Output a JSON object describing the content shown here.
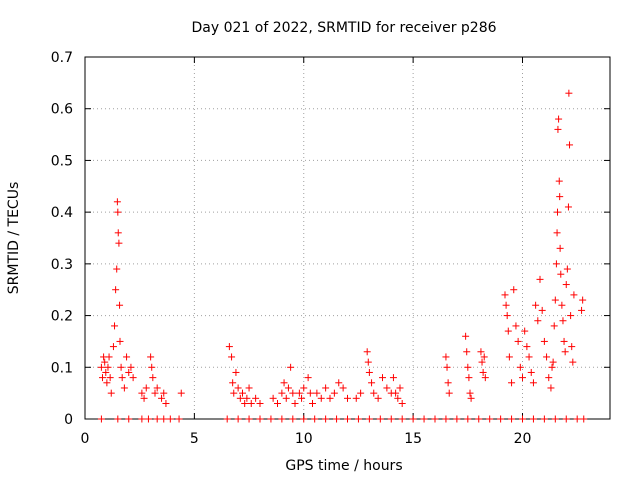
{
  "chart_data": {
    "type": "scatter",
    "title": "Day 021 of 2022, SRMTID for receiver p286",
    "xlabel": "GPS time / hours",
    "ylabel": "SRMTID / TECUs",
    "xlim": [
      0,
      24
    ],
    "ylim": [
      0,
      0.7
    ],
    "x_ticks": [
      0,
      5,
      10,
      15,
      20
    ],
    "y_ticks": [
      0,
      0.1,
      0.2,
      0.3,
      0.4,
      0.5,
      0.6,
      0.7
    ],
    "x_tick_labels": [
      "0",
      "5",
      "10",
      "15",
      "20"
    ],
    "y_tick_labels": [
      "0",
      "0.1",
      "0.2",
      "0.3",
      "0.4",
      "0.5",
      "0.6",
      "0.7"
    ],
    "grid": true,
    "marker": "+",
    "color": "#ff0000",
    "series": [
      {
        "name": "SRMTID",
        "points": [
          [
            0.75,
            0.1
          ],
          [
            0.8,
            0.08
          ],
          [
            0.85,
            0.12
          ],
          [
            0.9,
            0.11
          ],
          [
            0.95,
            0.09
          ],
          [
            1.0,
            0.07
          ],
          [
            1.05,
            0.1
          ],
          [
            1.1,
            0.12
          ],
          [
            1.15,
            0.08
          ],
          [
            1.2,
            0.05
          ],
          [
            1.3,
            0.14
          ],
          [
            1.35,
            0.18
          ],
          [
            1.4,
            0.25
          ],
          [
            1.45,
            0.29
          ],
          [
            1.48,
            0.42
          ],
          [
            1.5,
            0.4
          ],
          [
            1.52,
            0.36
          ],
          [
            1.55,
            0.34
          ],
          [
            1.58,
            0.22
          ],
          [
            1.6,
            0.15
          ],
          [
            1.65,
            0.1
          ],
          [
            1.7,
            0.08
          ],
          [
            1.8,
            0.06
          ],
          [
            1.9,
            0.12
          ],
          [
            2.0,
            0.09
          ],
          [
            2.1,
            0.1
          ],
          [
            2.2,
            0.08
          ],
          [
            2.6,
            0.05
          ],
          [
            2.7,
            0.04
          ],
          [
            2.8,
            0.06
          ],
          [
            3.0,
            0.12
          ],
          [
            3.05,
            0.1
          ],
          [
            3.1,
            0.08
          ],
          [
            3.2,
            0.05
          ],
          [
            3.3,
            0.06
          ],
          [
            3.5,
            0.04
          ],
          [
            3.6,
            0.05
          ],
          [
            3.7,
            0.03
          ],
          [
            4.4,
            0.05
          ],
          [
            6.6,
            0.14
          ],
          [
            6.7,
            0.12
          ],
          [
            6.75,
            0.07
          ],
          [
            6.8,
            0.05
          ],
          [
            6.9,
            0.09
          ],
          [
            7.0,
            0.06
          ],
          [
            7.1,
            0.04
          ],
          [
            7.2,
            0.05
          ],
          [
            7.3,
            0.03
          ],
          [
            7.4,
            0.04
          ],
          [
            7.5,
            0.06
          ],
          [
            7.6,
            0.03
          ],
          [
            7.8,
            0.04
          ],
          [
            8.0,
            0.03
          ],
          [
            8.6,
            0.04
          ],
          [
            8.8,
            0.03
          ],
          [
            9.0,
            0.05
          ],
          [
            9.1,
            0.07
          ],
          [
            9.2,
            0.04
          ],
          [
            9.3,
            0.06
          ],
          [
            9.4,
            0.1
          ],
          [
            9.5,
            0.05
          ],
          [
            9.6,
            0.03
          ],
          [
            9.8,
            0.05
          ],
          [
            9.9,
            0.04
          ],
          [
            10.0,
            0.06
          ],
          [
            10.2,
            0.08
          ],
          [
            10.3,
            0.05
          ],
          [
            10.4,
            0.03
          ],
          [
            10.6,
            0.05
          ],
          [
            10.8,
            0.04
          ],
          [
            11.0,
            0.06
          ],
          [
            11.2,
            0.04
          ],
          [
            11.4,
            0.05
          ],
          [
            11.6,
            0.07
          ],
          [
            11.8,
            0.06
          ],
          [
            12.0,
            0.04
          ],
          [
            12.4,
            0.04
          ],
          [
            12.6,
            0.05
          ],
          [
            12.9,
            0.13
          ],
          [
            12.95,
            0.11
          ],
          [
            13.0,
            0.09
          ],
          [
            13.1,
            0.07
          ],
          [
            13.2,
            0.05
          ],
          [
            13.4,
            0.04
          ],
          [
            13.6,
            0.08
          ],
          [
            13.8,
            0.06
          ],
          [
            14.0,
            0.05
          ],
          [
            14.1,
            0.08
          ],
          [
            14.2,
            0.05
          ],
          [
            14.3,
            0.04
          ],
          [
            14.4,
            0.06
          ],
          [
            14.5,
            0.03
          ],
          [
            16.5,
            0.12
          ],
          [
            16.55,
            0.1
          ],
          [
            16.6,
            0.07
          ],
          [
            16.65,
            0.05
          ],
          [
            17.4,
            0.16
          ],
          [
            17.45,
            0.13
          ],
          [
            17.5,
            0.1
          ],
          [
            17.55,
            0.08
          ],
          [
            17.6,
            0.05
          ],
          [
            17.65,
            0.04
          ],
          [
            18.1,
            0.13
          ],
          [
            18.15,
            0.11
          ],
          [
            18.2,
            0.09
          ],
          [
            18.25,
            0.12
          ],
          [
            18.3,
            0.08
          ],
          [
            19.2,
            0.24
          ],
          [
            19.25,
            0.22
          ],
          [
            19.3,
            0.2
          ],
          [
            19.35,
            0.17
          ],
          [
            19.4,
            0.12
          ],
          [
            19.5,
            0.07
          ],
          [
            19.6,
            0.25
          ],
          [
            19.7,
            0.18
          ],
          [
            19.8,
            0.15
          ],
          [
            19.9,
            0.1
          ],
          [
            20.0,
            0.08
          ],
          [
            20.1,
            0.17
          ],
          [
            20.2,
            0.14
          ],
          [
            20.3,
            0.12
          ],
          [
            20.4,
            0.09
          ],
          [
            20.5,
            0.07
          ],
          [
            20.6,
            0.22
          ],
          [
            20.7,
            0.19
          ],
          [
            20.8,
            0.27
          ],
          [
            20.9,
            0.21
          ],
          [
            21.0,
            0.15
          ],
          [
            21.1,
            0.12
          ],
          [
            21.2,
            0.08
          ],
          [
            21.3,
            0.06
          ],
          [
            21.35,
            0.1
          ],
          [
            21.4,
            0.11
          ],
          [
            21.45,
            0.18
          ],
          [
            21.5,
            0.23
          ],
          [
            21.55,
            0.3
          ],
          [
            21.58,
            0.36
          ],
          [
            21.6,
            0.4
          ],
          [
            21.62,
            0.56
          ],
          [
            21.65,
            0.58
          ],
          [
            21.68,
            0.46
          ],
          [
            21.7,
            0.43
          ],
          [
            21.72,
            0.33
          ],
          [
            21.75,
            0.28
          ],
          [
            21.8,
            0.22
          ],
          [
            21.85,
            0.19
          ],
          [
            21.9,
            0.15
          ],
          [
            21.95,
            0.13
          ],
          [
            22.0,
            0.26
          ],
          [
            22.05,
            0.29
          ],
          [
            22.1,
            0.41
          ],
          [
            22.12,
            0.63
          ],
          [
            22.15,
            0.53
          ],
          [
            22.2,
            0.2
          ],
          [
            22.25,
            0.14
          ],
          [
            22.3,
            0.11
          ],
          [
            22.35,
            0.24
          ],
          [
            22.7,
            0.21
          ],
          [
            22.75,
            0.23
          ],
          [
            0.75,
            0
          ],
          [
            1.5,
            0
          ],
          [
            2.0,
            0
          ],
          [
            2.6,
            0
          ],
          [
            2.9,
            0
          ],
          [
            3.3,
            0
          ],
          [
            3.6,
            0
          ],
          [
            3.9,
            0
          ],
          [
            4.3,
            0
          ],
          [
            6.5,
            0
          ],
          [
            7.0,
            0
          ],
          [
            7.5,
            0
          ],
          [
            8.0,
            0
          ],
          [
            8.5,
            0
          ],
          [
            9.0,
            0
          ],
          [
            9.5,
            0
          ],
          [
            10.0,
            0
          ],
          [
            10.5,
            0
          ],
          [
            11.0,
            0
          ],
          [
            11.5,
            0
          ],
          [
            12.0,
            0
          ],
          [
            12.5,
            0
          ],
          [
            13.0,
            0
          ],
          [
            13.5,
            0
          ],
          [
            14.0,
            0
          ],
          [
            14.5,
            0
          ],
          [
            15.0,
            0
          ],
          [
            15.5,
            0
          ],
          [
            16.0,
            0
          ],
          [
            16.5,
            0
          ],
          [
            17.0,
            0
          ],
          [
            17.5,
            0
          ],
          [
            18.0,
            0
          ],
          [
            18.5,
            0
          ],
          [
            19.0,
            0
          ],
          [
            19.5,
            0
          ],
          [
            20.0,
            0
          ],
          [
            20.5,
            0
          ],
          [
            21.0,
            0
          ],
          [
            21.5,
            0
          ],
          [
            22.0,
            0
          ],
          [
            22.5,
            0
          ],
          [
            22.8,
            0
          ]
        ]
      }
    ]
  }
}
